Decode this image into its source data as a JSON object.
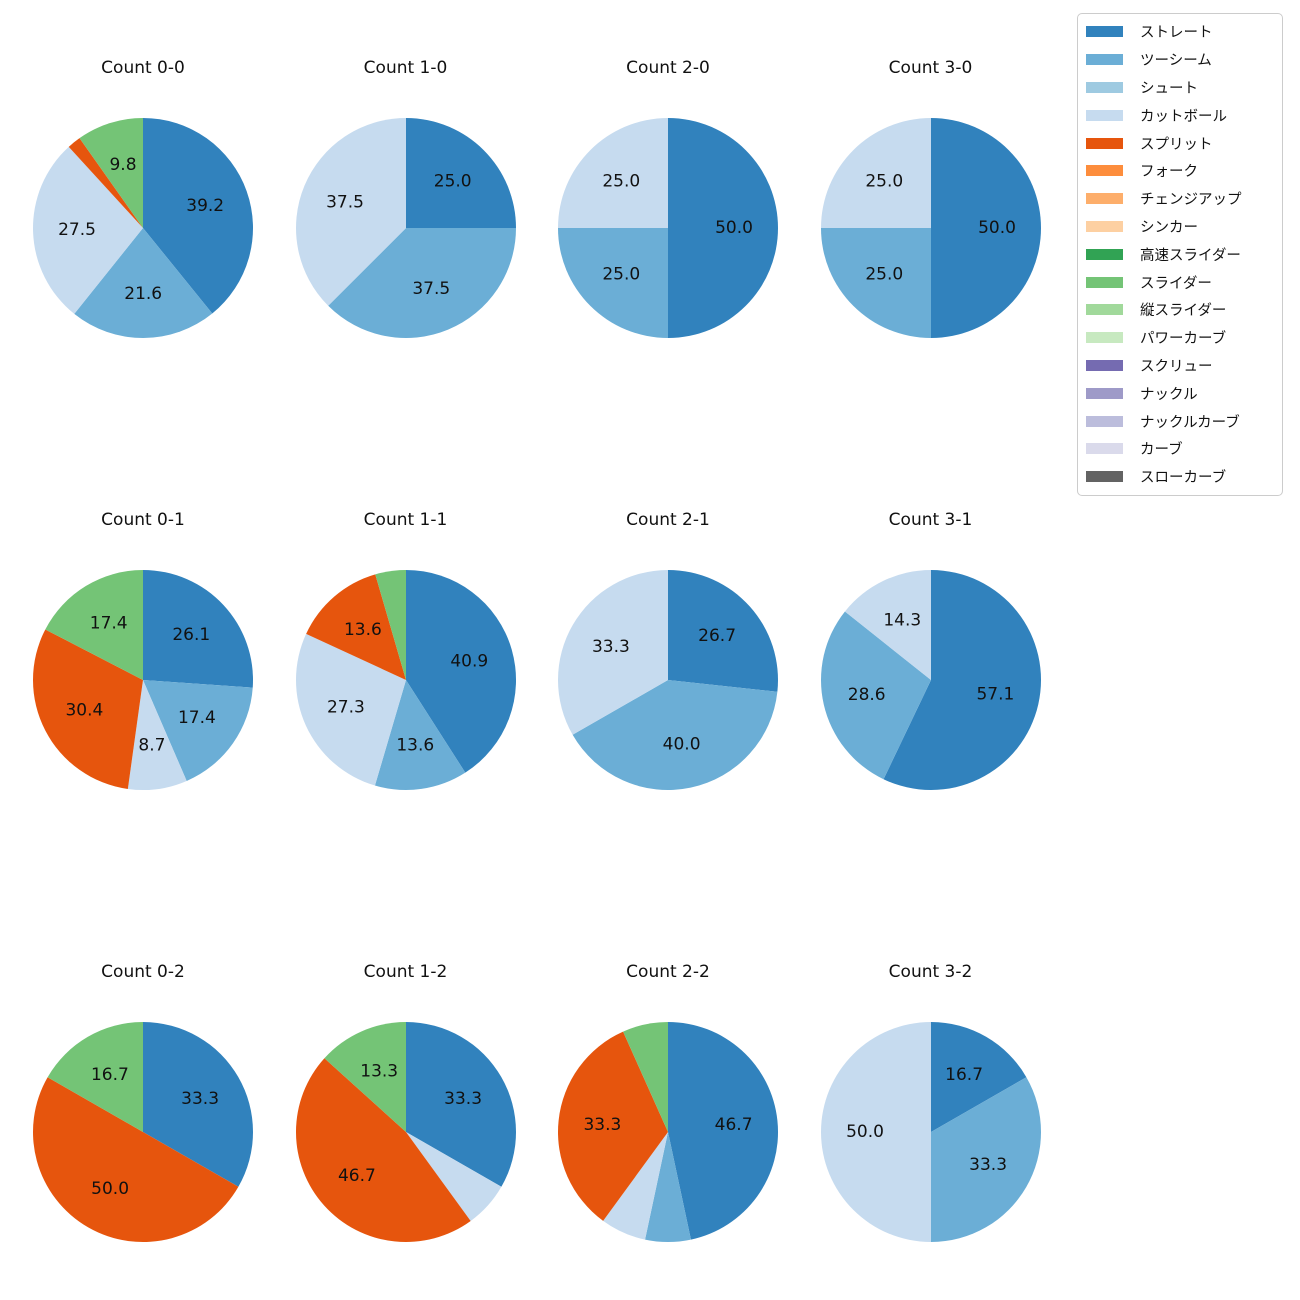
{
  "legend": {
    "items": [
      {
        "label": "ストレート",
        "color": "#3182bd"
      },
      {
        "label": "ツーシーム",
        "color": "#6baed6"
      },
      {
        "label": "シュート",
        "color": "#9ecae1"
      },
      {
        "label": "カットボール",
        "color": "#c6dbef"
      },
      {
        "label": "スプリット",
        "color": "#e6550d"
      },
      {
        "label": "フォーク",
        "color": "#fd8d3c"
      },
      {
        "label": "チェンジアップ",
        "color": "#fdae6b"
      },
      {
        "label": "シンカー",
        "color": "#fdd0a2"
      },
      {
        "label": "高速スライダー",
        "color": "#31a354"
      },
      {
        "label": "スライダー",
        "color": "#74c476"
      },
      {
        "label": "縦スライダー",
        "color": "#a1d99b"
      },
      {
        "label": "パワーカーブ",
        "color": "#c7e9c0"
      },
      {
        "label": "スクリュー",
        "color": "#756bb1"
      },
      {
        "label": "ナックル",
        "color": "#9e9ac8"
      },
      {
        "label": "ナックルカーブ",
        "color": "#bcbddc"
      },
      {
        "label": "カーブ",
        "color": "#dadaeb"
      },
      {
        "label": "スローカーブ",
        "color": "#636363"
      }
    ]
  },
  "chart_data": [
    {
      "type": "pie",
      "title": "Count 0-0",
      "start_angle_deg": 90,
      "direction": "clockwise",
      "legend_position": "upper right",
      "pct_label_distance": 0.6,
      "slices": [
        {
          "pitch": "ストレート",
          "pct": 39.2,
          "label": "39.2"
        },
        {
          "pitch": "ツーシーム",
          "pct": 21.6,
          "label": "21.6"
        },
        {
          "pitch": "カットボール",
          "pct": 27.5,
          "label": "27.5"
        },
        {
          "pitch": "スプリット",
          "pct": 2.0,
          "label": null
        },
        {
          "pitch": "スライダー",
          "pct": 9.8,
          "label": "9.8"
        }
      ]
    },
    {
      "type": "pie",
      "title": "Count 1-0",
      "slices": [
        {
          "pitch": "ストレート",
          "pct": 25.0,
          "label": "25.0"
        },
        {
          "pitch": "ツーシーム",
          "pct": 37.5,
          "label": "37.5"
        },
        {
          "pitch": "カットボール",
          "pct": 37.5,
          "label": "37.5"
        }
      ]
    },
    {
      "type": "pie",
      "title": "Count 2-0",
      "slices": [
        {
          "pitch": "ストレート",
          "pct": 50.0,
          "label": "50.0"
        },
        {
          "pitch": "ツーシーム",
          "pct": 25.0,
          "label": "25.0"
        },
        {
          "pitch": "カットボール",
          "pct": 25.0,
          "label": "25.0"
        }
      ]
    },
    {
      "type": "pie",
      "title": "Count 3-0",
      "slices": [
        {
          "pitch": "ストレート",
          "pct": 50.0,
          "label": "50.0"
        },
        {
          "pitch": "ツーシーム",
          "pct": 25.0,
          "label": "25.0"
        },
        {
          "pitch": "カットボール",
          "pct": 25.0,
          "label": "25.0"
        }
      ]
    },
    {
      "type": "pie",
      "title": "Count 0-1",
      "slices": [
        {
          "pitch": "ストレート",
          "pct": 26.1,
          "label": "26.1"
        },
        {
          "pitch": "ツーシーム",
          "pct": 17.4,
          "label": "17.4"
        },
        {
          "pitch": "カットボール",
          "pct": 8.7,
          "label": "8.7"
        },
        {
          "pitch": "スプリット",
          "pct": 30.4,
          "label": "30.4"
        },
        {
          "pitch": "スライダー",
          "pct": 17.4,
          "label": "17.4"
        }
      ]
    },
    {
      "type": "pie",
      "title": "Count 1-1",
      "slices": [
        {
          "pitch": "ストレート",
          "pct": 40.9,
          "label": "40.9"
        },
        {
          "pitch": "ツーシーム",
          "pct": 13.6,
          "label": "13.6"
        },
        {
          "pitch": "カットボール",
          "pct": 27.3,
          "label": "27.3"
        },
        {
          "pitch": "スプリット",
          "pct": 13.6,
          "label": "13.6"
        },
        {
          "pitch": "スライダー",
          "pct": 4.5,
          "label": null
        }
      ]
    },
    {
      "type": "pie",
      "title": "Count 2-1",
      "slices": [
        {
          "pitch": "ストレート",
          "pct": 26.7,
          "label": "26.7"
        },
        {
          "pitch": "ツーシーム",
          "pct": 40.0,
          "label": "40.0"
        },
        {
          "pitch": "カットボール",
          "pct": 33.3,
          "label": "33.3"
        }
      ]
    },
    {
      "type": "pie",
      "title": "Count 3-1",
      "slices": [
        {
          "pitch": "ストレート",
          "pct": 57.1,
          "label": "57.1"
        },
        {
          "pitch": "ツーシーム",
          "pct": 28.6,
          "label": "28.6"
        },
        {
          "pitch": "カットボール",
          "pct": 14.3,
          "label": "14.3"
        }
      ]
    },
    {
      "type": "pie",
      "title": "Count 0-2",
      "slices": [
        {
          "pitch": "ストレート",
          "pct": 33.3,
          "label": "33.3"
        },
        {
          "pitch": "スプリット",
          "pct": 50.0,
          "label": "50.0"
        },
        {
          "pitch": "スライダー",
          "pct": 16.7,
          "label": "16.7"
        }
      ]
    },
    {
      "type": "pie",
      "title": "Count 1-2",
      "slices": [
        {
          "pitch": "ストレート",
          "pct": 33.3,
          "label": "33.3"
        },
        {
          "pitch": "カットボール",
          "pct": 6.7,
          "label": null
        },
        {
          "pitch": "スプリット",
          "pct": 46.7,
          "label": "46.7"
        },
        {
          "pitch": "スライダー",
          "pct": 13.3,
          "label": "13.3"
        }
      ]
    },
    {
      "type": "pie",
      "title": "Count 2-2",
      "slices": [
        {
          "pitch": "ストレート",
          "pct": 46.7,
          "label": "46.7"
        },
        {
          "pitch": "ツーシーム",
          "pct": 6.7,
          "label": null
        },
        {
          "pitch": "カットボール",
          "pct": 6.7,
          "label": null
        },
        {
          "pitch": "スプリット",
          "pct": 33.3,
          "label": "33.3"
        },
        {
          "pitch": "スライダー",
          "pct": 6.7,
          "label": null
        }
      ]
    },
    {
      "type": "pie",
      "title": "Count 3-2",
      "slices": [
        {
          "pitch": "ストレート",
          "pct": 16.7,
          "label": "16.7"
        },
        {
          "pitch": "ツーシーム",
          "pct": 33.3,
          "label": "33.3"
        },
        {
          "pitch": "カットボール",
          "pct": 50.0,
          "label": "50.0"
        }
      ]
    }
  ]
}
